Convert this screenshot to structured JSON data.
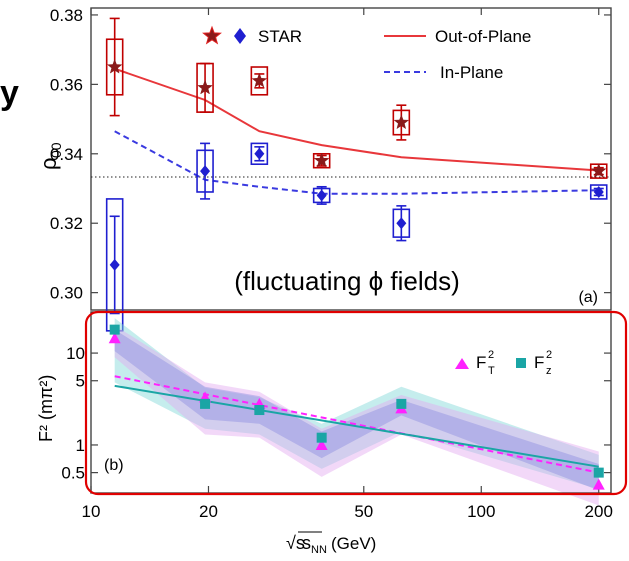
{
  "chart_data": [
    {
      "type": "scatter",
      "panel_label": "(a)",
      "annotation": "(fluctuating ϕ fields)",
      "ylabel": "ρ",
      "ylabel_sub": "00",
      "ylim": [
        0.295,
        0.382
      ],
      "xscale": "log",
      "xlim": [
        10,
        215
      ],
      "yticks": [
        "0.30",
        "0.32",
        "0.34",
        "0.36",
        "0.38"
      ],
      "ytick_values": [
        0.3,
        0.32,
        0.34,
        0.36,
        0.38
      ],
      "reference_line_y": 0.3333,
      "legend": {
        "marker_label": "STAR",
        "lines": [
          "Out-of-Plane",
          "In-Plane"
        ]
      },
      "x": [
        11.5,
        19.6,
        27,
        39,
        62.4,
        200
      ],
      "series": [
        {
          "name": "STAR",
          "marker": "star",
          "color": "#c00000",
          "values": [
            0.365,
            0.359,
            0.361,
            0.338,
            0.349,
            0.335
          ],
          "stat_err": [
            0.014,
            0.007,
            0.002,
            0.0015,
            0.005,
            0.001
          ],
          "sys_err": [
            0.008,
            0.007,
            0.004,
            0.002,
            0.0035,
            0.002
          ]
        },
        {
          "name": "STAR",
          "marker": "diamond",
          "color": "#1f1fd0",
          "values": [
            0.308,
            0.335,
            0.34,
            0.328,
            0.32,
            0.329
          ],
          "stat_err": [
            0.014,
            0.008,
            0.002,
            0.0025,
            0.005,
            0.001
          ],
          "sys_err": [
            0.019,
            0.006,
            0.003,
            0.002,
            0.004,
            0.002
          ]
        },
        {
          "name": "Out-of-Plane",
          "line": "solid",
          "color": "#e8373b",
          "x": [
            11.5,
            19.6,
            27,
            39,
            62.4,
            200
          ],
          "values": [
            0.3645,
            0.3555,
            0.3465,
            0.3425,
            0.339,
            0.3352
          ]
        },
        {
          "name": "In-Plane",
          "line": "dashed",
          "color": "#3a3ae0",
          "x": [
            11.5,
            19.6,
            27,
            39,
            62.4,
            200
          ],
          "values": [
            0.3465,
            0.3325,
            0.3305,
            0.3285,
            0.3285,
            0.3295
          ]
        }
      ]
    },
    {
      "type": "scatter",
      "panel_label": "(b)",
      "ylabel": "F",
      "ylabel_unit": "(mπ²)",
      "xlabel": "√s",
      "xlabel_sub": "NN",
      "xlabel_unit": "(GeV)",
      "xscale": "log",
      "yscale": "log",
      "xlim": [
        10,
        215
      ],
      "ylim": [
        0.3,
        28
      ],
      "yticks": [
        "0.5",
        "1",
        "5",
        "10"
      ],
      "ytick_values": [
        0.5,
        1,
        5,
        10
      ],
      "xticks": [
        "10",
        "20",
        "50",
        "100",
        "200"
      ],
      "xtick_values": [
        10,
        20,
        50,
        100,
        200
      ],
      "legend": {
        "labels": [
          "F",
          "F"
        ],
        "subs": [
          "T",
          "z"
        ]
      },
      "x": [
        11.5,
        19.6,
        27,
        39,
        62.4,
        200
      ],
      "series": [
        {
          "name": "F_T^2",
          "marker": "triangle",
          "color": "#ff22ff",
          "values": [
            14.5,
            3.3,
            2.8,
            1.0,
            2.5,
            0.37
          ]
        },
        {
          "name": "F_z^2",
          "marker": "square",
          "color": "#1aa5a5",
          "values": [
            18.0,
            2.8,
            2.4,
            1.2,
            2.8,
            0.5
          ]
        },
        {
          "name": "F_T^2 fit",
          "line": "dashed",
          "color": "#ff22ff",
          "x": [
            11.5,
            200
          ],
          "values": [
            5.6,
            0.5
          ]
        },
        {
          "name": "F_z^2 fit",
          "line": "solid",
          "color": "#1aa5a5",
          "x": [
            11.5,
            200
          ],
          "values": [
            4.4,
            0.58
          ]
        },
        {
          "name": "band-z",
          "fill": "#7fd8d8",
          "x": [
            11.5,
            19.6,
            27,
            39,
            62.4,
            200
          ],
          "upper": [
            24,
            4.2,
            3.3,
            1.7,
            4.3,
            0.78
          ],
          "lower": [
            4.8,
            1.5,
            1.3,
            0.55,
            1.4,
            0.33
          ]
        },
        {
          "name": "band-T",
          "fill": "#e2a8f0",
          "x": [
            11.5,
            19.6,
            27,
            39,
            62.4,
            200
          ],
          "upper": [
            20,
            4.8,
            3.8,
            1.5,
            3.5,
            0.85
          ],
          "lower": [
            9,
            1.3,
            1.2,
            0.45,
            1.3,
            0.22
          ]
        },
        {
          "name": "band-blue",
          "fill": "#8f8fe0",
          "x": [
            11.5,
            19.6,
            27,
            39,
            62.4,
            200
          ],
          "upper": [
            18,
            4.3,
            3.4,
            1.4,
            3.1,
            0.62
          ],
          "lower": [
            10.5,
            1.9,
            1.7,
            0.72,
            2.1,
            0.32
          ]
        }
      ]
    }
  ],
  "highlight_color": "#e00000"
}
